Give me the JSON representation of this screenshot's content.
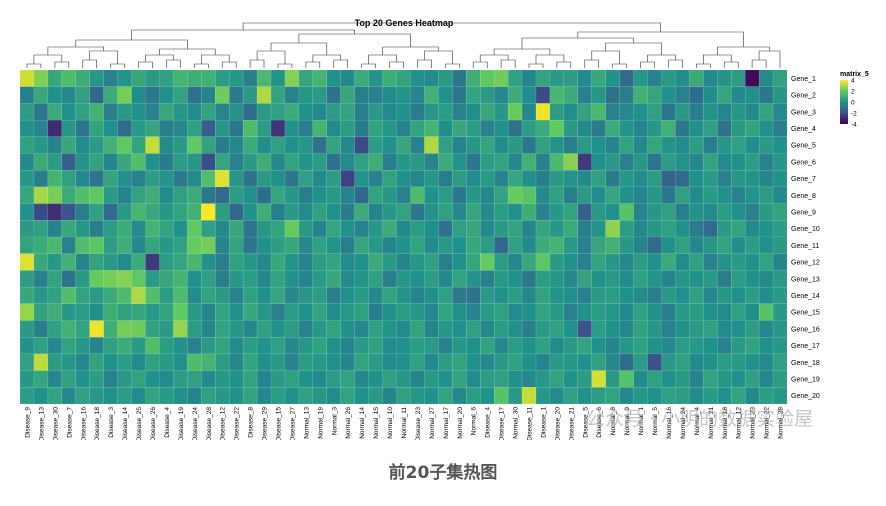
{
  "chart_data": {
    "type": "heatmap",
    "title": "Top 20 Genes Heatmap",
    "rows": [
      "Gene_1",
      "Gene_2",
      "Gene_3",
      "Gene_4",
      "Gene_5",
      "Gene_6",
      "Gene_7",
      "Gene_8",
      "Gene_9",
      "Gene_10",
      "Gene_11",
      "Gene_12",
      "Gene_13",
      "Gene_14",
      "Gene_15",
      "Gene_16",
      "Gene_17",
      "Gene_18",
      "Gene_19",
      "Gene_20"
    ],
    "columns": [
      "Disease_9",
      "Disease_13",
      "Disease_30",
      "Disease_7",
      "Disease_16",
      "Disease_18",
      "Disease_3",
      "Disease_14",
      "Disease_25",
      "Disease_26",
      "Disease_4",
      "Disease_19",
      "Disease_24",
      "Disease_28",
      "Disease_12",
      "Disease_22",
      "Disease_8",
      "Disease_29",
      "Disease_15",
      "Disease_27",
      "Normal_13",
      "Normal_19",
      "Normal_3",
      "Normal_26",
      "Normal_14",
      "Normal_15",
      "Normal_10",
      "Normal_11",
      "Disease_23",
      "Normal_27",
      "Normal_17",
      "Normal_20",
      "Normal_6",
      "Disease_4",
      "Disease_17",
      "Normal_30",
      "Disease_11",
      "Disease_1",
      "Disease_20",
      "Disease_21",
      "Disease_5",
      "Disease_6",
      "Normal_8",
      "Normal_9",
      "Normal_1",
      "Normal_5",
      "Normal_16",
      "Normal_24",
      "Normal_4",
      "Normal_21",
      "Normal_18",
      "Normal_12",
      "Normal_23",
      "Normal_22",
      "Normal_28"
    ],
    "legend": {
      "title": "matrix_5",
      "ticks": [
        4,
        2,
        0,
        -2,
        -4
      ]
    },
    "colorscale": "viridis",
    "zlim": [
      -4,
      4
    ],
    "values": [
      [
        3.4,
        2.4,
        0.8,
        1.5,
        0.9,
        0.2,
        -0.5,
        0.1,
        0.8,
        0.3,
        0.5,
        1.2,
        1.0,
        1.1,
        0.4,
        0.2,
        -0.6,
        1.4,
        0.1,
        2.5,
        0.7,
        1.2,
        0.0,
        -0.3,
        0.9,
        0.1,
        1.0,
        0.6,
        0.0,
        -0.2,
        0.3,
        -0.8,
        1.0,
        2.0,
        2.2,
        0.5,
        -0.4,
        0.6,
        0.3,
        0.4,
        -0.2,
        0.8,
        0.0,
        -1.2,
        0.2,
        -0.5,
        0.3,
        -0.1,
        0.9,
        -0.3,
        0.1,
        0.4,
        -3.8,
        -0.2,
        0.5
      ],
      [
        -0.6,
        0.8,
        0.0,
        -0.3,
        0.5,
        -1.3,
        0.9,
        2.3,
        -0.2,
        -0.8,
        0.0,
        0.6,
        -1.0,
        -0.4,
        2.2,
        -0.7,
        0.3,
        3.0,
        0.6,
        -0.5,
        0.2,
        0.3,
        -1.0,
        0.8,
        -0.6,
        -0.5,
        -0.2,
        0.1,
        -0.4,
        1.1,
        0.0,
        -0.8,
        0.6,
        0.3,
        -0.3,
        0.9,
        -0.1,
        -2.2,
        1.3,
        0.9,
        -0.5,
        0.2,
        -1.0,
        -0.6,
        1.1,
        0.7,
        0.0,
        -0.5,
        -1.1,
        -0.1,
        0.7,
        -0.3,
        0.0,
        -0.8,
        0.2
      ],
      [
        0.4,
        -0.8,
        0.9,
        0.0,
        0.5,
        1.1,
        -0.6,
        0.3,
        0.0,
        -0.5,
        0.8,
        0.2,
        -0.2,
        0.6,
        -0.4,
        0.1,
        -1.1,
        0.3,
        0.5,
        0.9,
        0.0,
        -0.2,
        0.4,
        0.6,
        -0.6,
        0.3,
        -0.3,
        0.0,
        -0.7,
        0.2,
        0.4,
        -0.5,
        -0.1,
        0.8,
        0.2,
        2.1,
        -0.3,
        3.8,
        0.4,
        -0.1,
        0.6,
        1.4,
        -0.5,
        -0.3,
        0.0,
        0.5,
        -0.9,
        0.3,
        -0.7,
        0.1,
        -0.4,
        0.2,
        -0.2,
        0.6,
        -0.3
      ],
      [
        0.0,
        -0.4,
        -3.0,
        0.2,
        -0.9,
        0.6,
        0.0,
        -1.2,
        0.3,
        0.7,
        -0.6,
        -0.3,
        0.5,
        -1.6,
        0.2,
        -0.8,
        1.5,
        0.4,
        -2.7,
        0.0,
        -0.6,
        1.2,
        -0.2,
        0.4,
        -0.7,
        0.6,
        0.2,
        -0.4,
        0.6,
        1.2,
        -0.1,
        0.8,
        0.4,
        -0.5,
        0.0,
        -1.0,
        0.4,
        0.9,
        2.0,
        0.3,
        -0.2,
        -0.7,
        0.9,
        0.1,
        -0.4,
        0.2,
        1.1,
        -0.8,
        0.0,
        0.5,
        -1.0,
        0.3,
        0.6,
        0.0,
        -0.6
      ],
      [
        0.5,
        0.2,
        -0.4,
        0.8,
        -0.2,
        0.3,
        1.1,
        2.0,
        0.6,
        3.3,
        -0.2,
        0.3,
        2.0,
        0.6,
        -0.7,
        -0.3,
        0.9,
        -0.1,
        0.5,
        0.0,
        0.2,
        -1.0,
        0.6,
        -0.3,
        -2.2,
        0.4,
        0.0,
        0.8,
        -0.5,
        3.0,
        0.5,
        -0.4,
        0.2,
        0.7,
        -0.2,
        0.3,
        -0.8,
        0.5,
        0.1,
        -0.6,
        0.3,
        0.0,
        -0.4,
        0.6,
        -0.3,
        0.7,
        0.1,
        -0.2,
        0.4,
        -0.6,
        0.2,
        0.5,
        -0.1,
        0.3,
        0.0
      ],
      [
        -0.3,
        0.9,
        0.4,
        -1.6,
        0.1,
        0.6,
        -0.4,
        0.8,
        1.6,
        0.0,
        -0.7,
        0.4,
        0.2,
        -2.1,
        0.7,
        -0.5,
        0.3,
        1.0,
        -0.3,
        0.6,
        0.1,
        0.4,
        -1.0,
        -0.2,
        0.5,
        1.0,
        -0.6,
        0.2,
        0.3,
        -0.4,
        0.9,
        0.1,
        -0.8,
        0.4,
        0.6,
        -0.3,
        1.1,
        -0.5,
        1.4,
        2.5,
        -2.6,
        0.0,
        0.3,
        -0.5,
        0.2,
        -0.9,
        0.4,
        0.1,
        -0.3,
        0.6,
        -0.2,
        0.0,
        0.4,
        -0.5,
        0.2
      ],
      [
        0.2,
        -0.6,
        1.2,
        0.5,
        -0.3,
        -0.9,
        0.6,
        0.0,
        -0.5,
        0.4,
        0.1,
        -0.7,
        -0.2,
        1.6,
        3.6,
        0.2,
        -1.0,
        0.3,
        0.0,
        -0.8,
        0.5,
        -0.2,
        0.4,
        -2.4,
        0.1,
        -0.5,
        0.6,
        0.0,
        -0.3,
        0.2,
        -0.6,
        0.4,
        -0.1,
        0.3,
        -0.4,
        0.7,
        0.0,
        -0.6,
        0.3,
        0.1,
        -0.2,
        0.5,
        -0.7,
        0.2,
        -0.1,
        0.4,
        -1.4,
        -1.2,
        0.0,
        0.3,
        -0.5,
        0.2,
        0.1,
        -0.4,
        0.0
      ],
      [
        0.7,
        2.9,
        2.3,
        0.9,
        1.6,
        2.0,
        0.3,
        -0.4,
        0.6,
        1.0,
        -0.2,
        0.5,
        0.9,
        -0.8,
        -1.2,
        0.4,
        0.0,
        -1.1,
        0.7,
        0.2,
        -0.6,
        0.0,
        0.3,
        -0.4,
        -1.3,
        0.6,
        0.2,
        -0.5,
        1.5,
        0.0,
        0.4,
        -0.8,
        0.2,
        -0.3,
        0.6,
        2.1,
        1.8,
        -0.2,
        0.5,
        -0.6,
        0.3,
        -0.1,
        0.7,
        0.0,
        -0.4,
        0.2,
        -0.8,
        0.5,
        -0.2,
        0.3,
        0.0,
        -0.5,
        0.1,
        0.4,
        -0.3
      ],
      [
        0.0,
        -2.2,
        -2.9,
        -1.9,
        -0.6,
        0.5,
        -1.2,
        0.3,
        1.3,
        0.8,
        0.2,
        0.6,
        1.1,
        4.0,
        0.4,
        -1.3,
        0.0,
        1.0,
        -0.6,
        0.3,
        -0.2,
        0.5,
        0.0,
        -0.7,
        0.9,
        -0.4,
        0.2,
        0.6,
        -0.8,
        0.1,
        0.5,
        -0.3,
        0.7,
        -0.2,
        0.4,
        0.0,
        1.0,
        -0.5,
        0.2,
        0.6,
        -1.5,
        0.3,
        0.0,
        1.8,
        -0.4,
        0.2,
        0.5,
        -0.6,
        0.1,
        -0.2,
        0.4,
        0.0,
        -0.5,
        0.3,
        0.6
      ],
      [
        0.3,
        0.5,
        -0.4,
        0.8,
        0.2,
        -0.6,
        0.4,
        0.9,
        -0.2,
        1.2,
        0.6,
        0.0,
        2.0,
        0.5,
        -0.3,
        0.8,
        -0.9,
        0.2,
        0.6,
        2.1,
        0.3,
        -0.4,
        0.7,
        0.0,
        -0.5,
        0.2,
        0.9,
        -0.3,
        0.4,
        -0.1,
        -1.0,
        0.5,
        0.8,
        -0.2,
        0.3,
        0.6,
        -0.4,
        0.7,
        0.2,
        0.9,
        -0.6,
        0.1,
        2.6,
        0.4,
        -0.3,
        0.2,
        0.5,
        0.0,
        -0.7,
        -1.2,
        0.3,
        0.6,
        -0.2,
        0.0,
        0.4
      ],
      [
        0.6,
        0.9,
        1.4,
        -0.5,
        1.6,
        1.9,
        0.4,
        1.0,
        -0.3,
        0.7,
        0.2,
        0.5,
        2.1,
        2.3,
        -0.4,
        0.6,
        -0.8,
        0.0,
        0.4,
        0.8,
        -0.3,
        0.5,
        0.1,
        -0.6,
        0.7,
        0.2,
        -0.4,
        0.0,
        0.6,
        -0.2,
        0.3,
        0.0,
        0.8,
        0.4,
        -1.3,
        0.5,
        -0.2,
        0.9,
        1.2,
        0.3,
        -0.5,
        0.7,
        1.1,
        0.2,
        -0.4,
        -1.2,
        0.0,
        0.5,
        -0.3,
        0.2,
        0.6,
        -0.1,
        0.4,
        0.0,
        0.3
      ],
      [
        3.6,
        0.8,
        0.2,
        1.1,
        -0.4,
        0.6,
        0.3,
        -0.2,
        0.9,
        -2.6,
        0.4,
        0.7,
        1.3,
        0.0,
        -0.6,
        0.5,
        0.2,
        -0.3,
        0.8,
        0.1,
        -0.5,
        0.4,
        0.6,
        -0.2,
        0.0,
        0.9,
        0.3,
        -0.4,
        0.2,
        0.5,
        -0.6,
        0.0,
        0.7,
        2.1,
        0.4,
        -0.3,
        0.8,
        1.9,
        0.3,
        0.0,
        -0.5,
        0.6,
        0.2,
        -0.3,
        0.4,
        0.0,
        0.9,
        -0.2,
        0.5,
        -0.5,
        0.1,
        0.3,
        0.0,
        0.6,
        -0.4
      ],
      [
        0.4,
        -0.5,
        0.6,
        -1.0,
        0.3,
        2.1,
        2.3,
        2.5,
        2.0,
        0.3,
        0.8,
        1.2,
        0.0,
        0.5,
        -0.6,
        0.2,
        0.4,
        -0.3,
        0.6,
        0.0,
        -0.4,
        0.3,
        0.8,
        -0.2,
        0.1,
        0.5,
        -0.6,
        0.2,
        0.0,
        0.4,
        -0.3,
        0.6,
        0.1,
        -0.5,
        0.3,
        0.0,
        -0.8,
        0.4,
        0.2,
        -0.3,
        0.6,
        0.0,
        0.3,
        -0.2,
        0.5,
        0.1,
        -0.4,
        0.2,
        0.0,
        0.3,
        -0.6,
        0.4,
        0.0,
        -0.2,
        0.3
      ],
      [
        0.8,
        0.2,
        0.5,
        1.6,
        0.6,
        0.3,
        0.9,
        1.5,
        3.0,
        1.6,
        0.4,
        1.5,
        -0.2,
        0.6,
        0.3,
        -0.4,
        0.5,
        0.0,
        0.7,
        -0.3,
        0.2,
        0.4,
        -0.6,
        0.0,
        0.3,
        -0.2,
        0.6,
        0.1,
        -0.4,
        0.0,
        0.5,
        -0.7,
        -1.0,
        0.3,
        0.0,
        0.4,
        -0.3,
        0.6,
        0.1,
        0.0,
        -0.5,
        0.3,
        0.4,
        0.0,
        -0.2,
        -0.6,
        0.3,
        0.0,
        0.5,
        -0.3,
        0.2,
        0.0,
        0.4,
        -0.1,
        0.3
      ],
      [
        2.7,
        0.6,
        1.0,
        0.2,
        0.4,
        0.0,
        1.0,
        0.5,
        0.8,
        0.2,
        0.6,
        2.0,
        0.3,
        -0.4,
        0.6,
        0.0,
        0.8,
        0.2,
        -0.5,
        0.4,
        0.0,
        0.6,
        -0.2,
        0.3,
        0.5,
        -0.6,
        0.0,
        0.4,
        0.2,
        -0.3,
        0.6,
        0.0,
        -0.4,
        0.3,
        0.5,
        -0.2,
        0.0,
        0.6,
        0.3,
        -0.5,
        0.0,
        0.4,
        0.2,
        -0.3,
        0.5,
        0.0,
        -0.6,
        0.3,
        0.4,
        0.0,
        -0.2,
        0.5,
        0.0,
        1.8,
        0.3
      ],
      [
        0.3,
        -0.6,
        0.5,
        1.1,
        0.6,
        3.8,
        1.0,
        2.3,
        2.2,
        0.5,
        0.3,
        2.7,
        0.4,
        -0.4,
        0.6,
        0.2,
        -0.3,
        0.5,
        0.0,
        0.4,
        -0.5,
        0.2,
        0.6,
        0.0,
        -0.3,
        0.5,
        0.1,
        -0.2,
        0.6,
        -0.4,
        0.2,
        0.0,
        0.5,
        -0.3,
        0.4,
        0.0,
        -0.6,
        0.3,
        0.5,
        0.0,
        -2.0,
        0.4,
        0.0,
        -0.3,
        0.6,
        0.2,
        -0.5,
        0.0,
        0.3,
        0.5,
        -0.2,
        0.0,
        0.4,
        -0.3,
        0.2
      ],
      [
        0.0,
        0.5,
        -0.3,
        0.6,
        0.2,
        -0.4,
        0.5,
        0.9,
        0.3,
        1.6,
        0.4,
        0.0,
        -0.5,
        0.3,
        0.6,
        -0.2,
        0.4,
        0.0,
        0.5,
        -0.3,
        0.2,
        0.6,
        0.0,
        -0.4,
        0.3,
        0.5,
        -0.2,
        0.0,
        0.4,
        0.3,
        -0.5,
        0.2,
        0.0,
        0.6,
        -0.3,
        0.4,
        0.0,
        0.5,
        -0.2,
        0.3,
        0.6,
        0.0,
        -0.4,
        0.2,
        0.5,
        0.0,
        -0.3,
        0.4,
        0.2,
        0.0,
        -0.5,
        0.3,
        0.6,
        0.0,
        0.2
      ],
      [
        0.5,
        3.2,
        0.4,
        0.2,
        -0.3,
        0.6,
        0.0,
        0.4,
        -0.2,
        0.5,
        0.3,
        0.0,
        1.5,
        1.2,
        0.4,
        -0.3,
        0.6,
        0.0,
        0.3,
        -0.5,
        0.4,
        0.2,
        0.0,
        -0.4,
        0.6,
        0.3,
        -0.2,
        0.0,
        0.5,
        -0.3,
        0.4,
        0.6,
        0.0,
        -0.2,
        0.3,
        0.5,
        0.0,
        -0.4,
        0.3,
        0.2,
        0.0,
        0.5,
        -0.3,
        -1.1,
        0.4,
        -2.0,
        0.3,
        0.5,
        -0.2,
        0.0,
        0.4,
        0.3,
        0.0,
        -0.2,
        0.5
      ],
      [
        0.2,
        0.7,
        -0.3,
        0.5,
        0.0,
        0.4,
        -0.5,
        0.3,
        0.6,
        0.0,
        -0.2,
        0.4,
        0.5,
        -0.3,
        0.2,
        0.0,
        0.6,
        -0.4,
        0.3,
        0.5,
        0.0,
        -0.2,
        0.4,
        0.6,
        -0.3,
        0.0,
        0.5,
        0.2,
        -0.4,
        0.3,
        0.0,
        0.6,
        -0.2,
        0.4,
        0.5,
        0.0,
        -0.3,
        0.2,
        0.6,
        0.0,
        0.4,
        3.5,
        0.3,
        1.8,
        -0.2,
        0.5,
        0.0,
        0.3,
        -0.4,
        0.6,
        0.2,
        0.0,
        0.5,
        -0.3,
        0.4
      ],
      [
        0.4,
        0.0,
        0.6,
        -0.3,
        0.5,
        0.2,
        0.0,
        0.4,
        -0.2,
        0.6,
        0.3,
        0.0,
        -0.4,
        0.5,
        0.2,
        0.0,
        0.6,
        -0.3,
        0.4,
        0.0,
        0.5,
        0.2,
        -0.2,
        0.6,
        0.0,
        0.3,
        -0.4,
        0.5,
        0.2,
        0.0,
        0.6,
        -0.3,
        0.4,
        0.0,
        1.8,
        0.3,
        3.3,
        0.2,
        -0.2,
        0.5,
        0.0,
        0.4,
        0.6,
        -0.3,
        0.2,
        0.0,
        0.5,
        0.4,
        -0.2,
        0.3,
        0.0,
        0.6,
        -0.3,
        0.4,
        0.2
      ]
    ]
  },
  "caption": "前20子集热图",
  "watermark": "公众号 · 小明的数据实验屋"
}
